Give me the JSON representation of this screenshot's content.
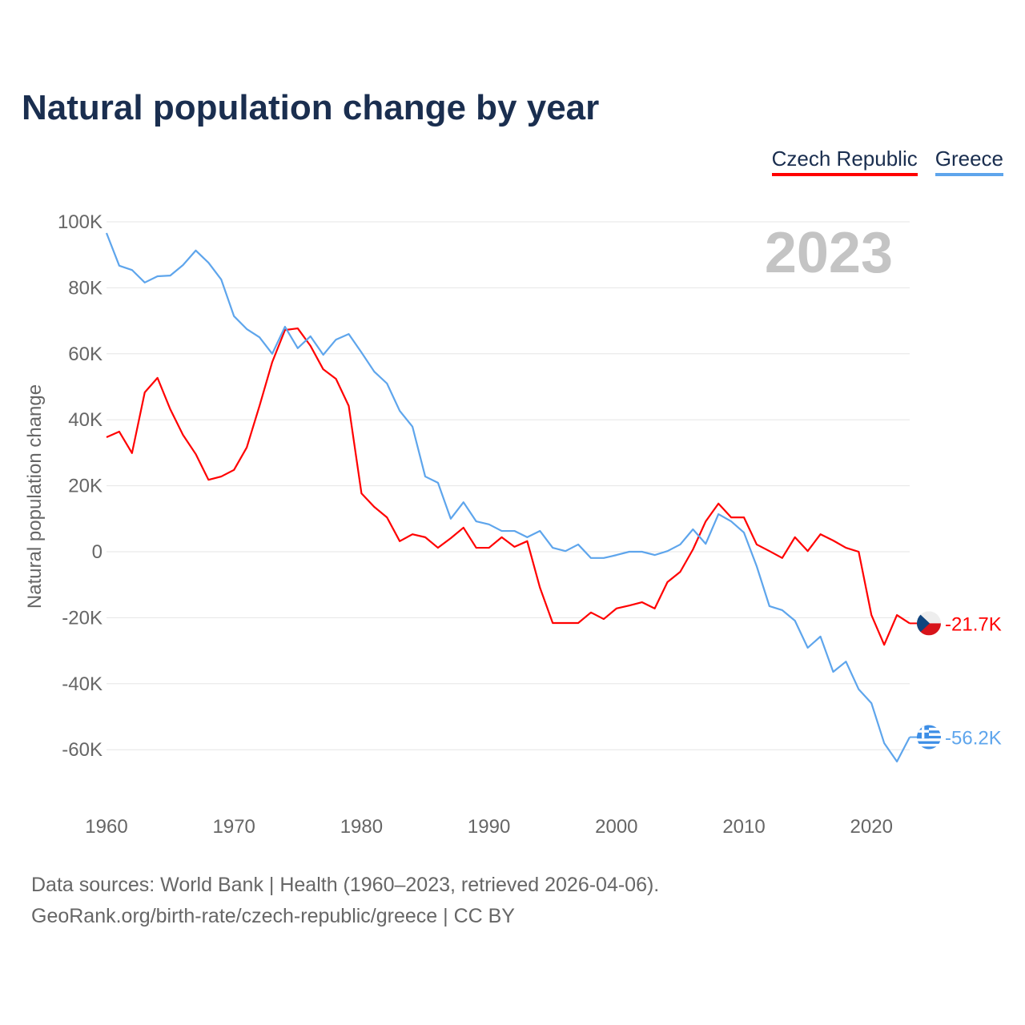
{
  "title": "Natural population change by year",
  "legend": [
    "Czech Republic",
    "Greece"
  ],
  "current_year": "2023",
  "source_lines": [
    "Data sources: World Bank | Health (1960–2023, retrieved 2026-04-06).",
    "GeoRank.org/birth-rate/czech-republic/greece | CC BY"
  ],
  "chart_data": {
    "type": "line",
    "title": "Natural population change by year",
    "xlabel": "",
    "ylabel": "Natural population change",
    "xlim": [
      1960,
      2023
    ],
    "ylim": [
      -70000,
      100000
    ],
    "x_ticks": [
      1960,
      1970,
      1980,
      1990,
      2000,
      2010,
      2020
    ],
    "y_ticks": [
      100000,
      80000,
      60000,
      40000,
      20000,
      0,
      -20000,
      -40000,
      -60000
    ],
    "y_tick_labels": [
      "100K",
      "80K",
      "60K",
      "40K",
      "20K",
      "0",
      "-20K",
      "-40K",
      "-60K"
    ],
    "grid": true,
    "legend_position": "top-right",
    "start_year": 1960,
    "series": [
      {
        "name": "Czech Republic",
        "color": "#ff0000",
        "end_label": "-21.7K",
        "flag": "czech-flag",
        "values": [
          34700,
          36400,
          29900,
          48300,
          52700,
          43200,
          35400,
          29600,
          21800,
          22800,
          24800,
          31600,
          44200,
          57500,
          67200,
          67700,
          62400,
          55300,
          52400,
          44200,
          17700,
          13600,
          10400,
          3200,
          5300,
          4400,
          1200,
          4100,
          7300,
          1200,
          1200,
          4400,
          1500,
          3200,
          -10900,
          -21600,
          -21600,
          -21600,
          -18400,
          -20400,
          -17200,
          -16300,
          -15300,
          -17200,
          -9200,
          -6100,
          700,
          9200,
          14600,
          10400,
          10400,
          2200,
          200,
          -1900,
          4400,
          200,
          5300,
          3400,
          1200,
          0,
          -19200,
          -28200,
          -19200,
          -21700
        ]
      },
      {
        "name": "Greece",
        "color": "#5ea5ec",
        "end_label": "-56.2K",
        "flag": "greece-flag",
        "values": [
          96600,
          86700,
          85400,
          81600,
          83500,
          83700,
          86900,
          91300,
          87600,
          82500,
          71400,
          67500,
          65000,
          60000,
          68200,
          61700,
          65300,
          59700,
          64300,
          66000,
          60400,
          54600,
          51000,
          42700,
          37900,
          22800,
          20900,
          10000,
          15000,
          9200,
          8300,
          6300,
          6300,
          4400,
          6300,
          1200,
          200,
          2200,
          -1900,
          -1900,
          -1000,
          0,
          0,
          -1000,
          200,
          2200,
          6800,
          2400,
          11400,
          9200,
          5800,
          -4400,
          -16500,
          -17700,
          -20900,
          -29100,
          -25700,
          -36400,
          -33300,
          -41700,
          -45900,
          -58000,
          -63600,
          -56200
        ]
      }
    ]
  }
}
